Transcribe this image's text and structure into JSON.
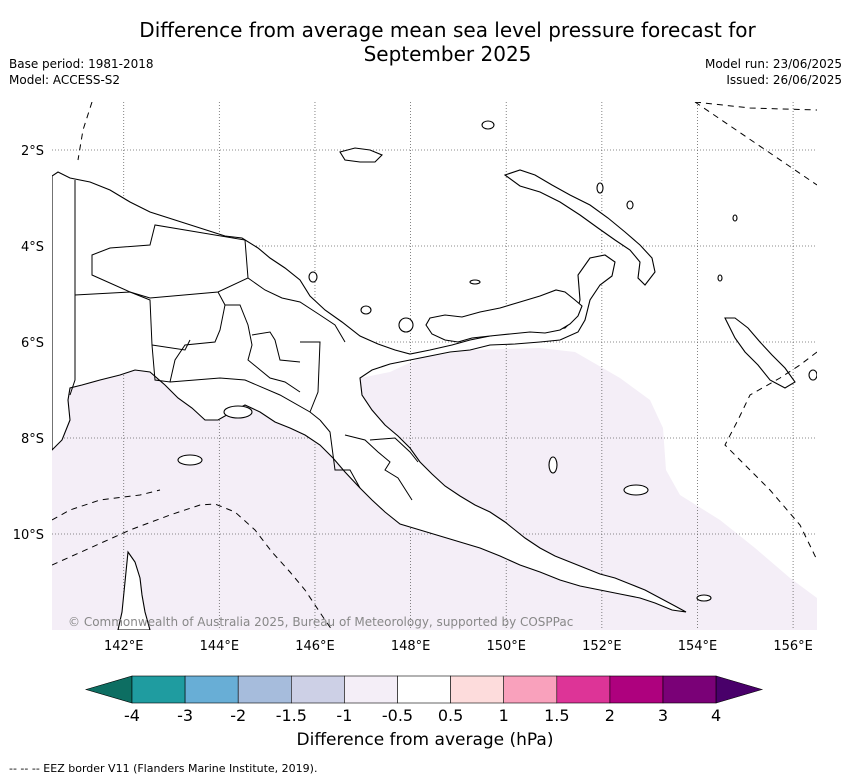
{
  "title_line1": "Difference from average mean sea level pressure forecast for",
  "title_line2": "September 2025",
  "meta_left": [
    "Base period: 1981-2018",
    "Model: ACCESS-S2"
  ],
  "meta_right": [
    "Model run: 23/06/2025",
    "Issued: 26/06/2025"
  ],
  "map": {
    "lon_range": [
      140.5,
      156.5
    ],
    "lat_range": [
      -12,
      -1
    ],
    "lon_ticks": [
      "142°E",
      "144°E",
      "146°E",
      "148°E",
      "150°E",
      "152°E",
      "154°E",
      "156°E"
    ],
    "lat_ticks": [
      "2°S",
      "4°S",
      "6°S",
      "8°S",
      "10°S"
    ],
    "gridlines": true,
    "shaded_category": "-1 to -0.5",
    "copyright": "© Commonwealth of Australia 2025, Bureau of Meteorology, supported by COSPPac"
  },
  "colorbar": {
    "ticks": [
      "-4",
      "-3",
      "-2",
      "-1.5",
      "-1",
      "-0.5",
      "0.5",
      "1",
      "1.5",
      "2",
      "3",
      "4"
    ],
    "colors": [
      "#0d6e62",
      "#1f9ca0",
      "#68aed6",
      "#a6bcdc",
      "#cdd0e6",
      "#f4eef7",
      "#ffffff",
      "#fddcdc",
      "#f9a1bc",
      "#dd3497",
      "#ae017e",
      "#7a0177",
      "#49006a"
    ],
    "label": "Difference from average (hPa)"
  },
  "footer": "--  --  -- EEZ border V11 (Flanders Marine Institute, 2019)."
}
